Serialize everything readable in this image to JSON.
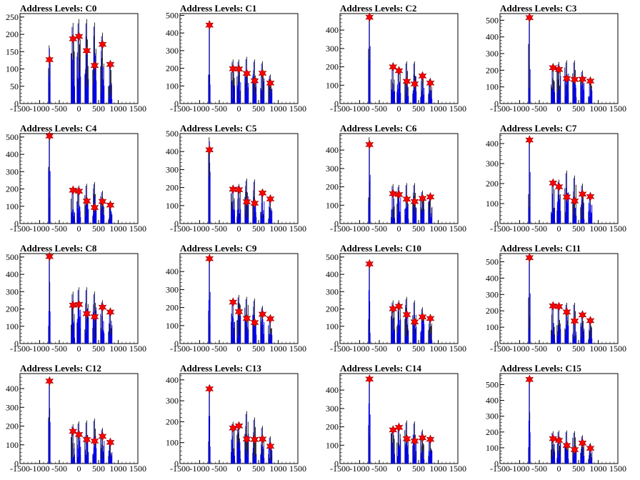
{
  "chart_data": [
    {
      "type": "bar",
      "title": "Address Levels: C0",
      "xlim": [
        -1500,
        1500
      ],
      "ylim": [
        0,
        260
      ],
      "yticks": [
        0,
        50,
        100,
        150,
        200,
        250
      ],
      "peaks": [
        {
          "x": -750,
          "y": 127,
          "top": 168
        },
        {
          "x": -150,
          "y": 187,
          "top": 233
        },
        {
          "x": 0,
          "y": 194,
          "top": 244
        },
        {
          "x": 200,
          "y": 153,
          "top": 244
        },
        {
          "x": 400,
          "y": 110,
          "top": 234
        },
        {
          "x": 600,
          "y": 171,
          "top": 205
        },
        {
          "x": 800,
          "y": 113,
          "top": 120
        }
      ]
    },
    {
      "type": "bar",
      "title": "Address Levels: C1",
      "xlim": [
        -1500,
        1500
      ],
      "ylim": [
        0,
        510
      ],
      "yticks": [
        0,
        100,
        200,
        300,
        400,
        500
      ],
      "peaks": [
        {
          "x": -750,
          "y": 445,
          "top": 470
        },
        {
          "x": -150,
          "y": 197,
          "top": 250
        },
        {
          "x": 0,
          "y": 196,
          "top": 250
        },
        {
          "x": 200,
          "y": 171,
          "top": 265
        },
        {
          "x": 400,
          "y": 129,
          "top": 250
        },
        {
          "x": 600,
          "y": 172,
          "top": 240
        },
        {
          "x": 800,
          "y": 116,
          "top": 165
        }
      ]
    },
    {
      "type": "bar",
      "title": "Address Levels: C2",
      "xlim": [
        -1500,
        1500
      ],
      "ylim": [
        0,
        490
      ],
      "yticks": [
        0,
        100,
        200,
        300,
        400
      ],
      "peaks": [
        {
          "x": -750,
          "y": 470,
          "top": 480
        },
        {
          "x": -150,
          "y": 200,
          "top": 210
        },
        {
          "x": 0,
          "y": 179,
          "top": 200
        },
        {
          "x": 200,
          "y": 121,
          "top": 230
        },
        {
          "x": 400,
          "y": 107,
          "top": 230
        },
        {
          "x": 600,
          "y": 150,
          "top": 160
        },
        {
          "x": 800,
          "y": 112,
          "top": 140
        }
      ]
    },
    {
      "type": "bar",
      "title": "Address Levels: C3",
      "xlim": [
        -1500,
        1500
      ],
      "ylim": [
        0,
        540
      ],
      "yticks": [
        0,
        100,
        200,
        300,
        400,
        500
      ],
      "peaks": [
        {
          "x": -750,
          "y": 516,
          "top": 520
        },
        {
          "x": -150,
          "y": 215,
          "top": 240
        },
        {
          "x": 0,
          "y": 205,
          "top": 250
        },
        {
          "x": 200,
          "y": 150,
          "top": 260
        },
        {
          "x": 400,
          "y": 145,
          "top": 260
        },
        {
          "x": 600,
          "y": 146,
          "top": 200
        },
        {
          "x": 800,
          "y": 135,
          "top": 150
        }
      ]
    },
    {
      "type": "bar",
      "title": "Address Levels: C4",
      "xlim": [
        -1500,
        1500
      ],
      "ylim": [
        0,
        520
      ],
      "yticks": [
        0,
        100,
        200,
        300,
        400,
        500
      ],
      "peaks": [
        {
          "x": -750,
          "y": 506,
          "top": 510
        },
        {
          "x": -150,
          "y": 193,
          "top": 210
        },
        {
          "x": 0,
          "y": 187,
          "top": 220
        },
        {
          "x": 200,
          "y": 130,
          "top": 230
        },
        {
          "x": 400,
          "y": 93,
          "top": 240
        },
        {
          "x": 600,
          "y": 128,
          "top": 190
        },
        {
          "x": 800,
          "y": 107,
          "top": 120
        }
      ]
    },
    {
      "type": "bar",
      "title": "Address Levels: C5",
      "xlim": [
        -1500,
        1500
      ],
      "ylim": [
        0,
        500
      ],
      "yticks": [
        0,
        100,
        200,
        300,
        400,
        500
      ],
      "peaks": [
        {
          "x": -750,
          "y": 410,
          "top": 480
        },
        {
          "x": -150,
          "y": 191,
          "top": 200
        },
        {
          "x": 0,
          "y": 188,
          "top": 220
        },
        {
          "x": 200,
          "y": 121,
          "top": 250
        },
        {
          "x": 400,
          "y": 113,
          "top": 245
        },
        {
          "x": 600,
          "y": 170,
          "top": 190
        },
        {
          "x": 800,
          "y": 137,
          "top": 145
        }
      ]
    },
    {
      "type": "bar",
      "title": "Address Levels: C6",
      "xlim": [
        -1500,
        1500
      ],
      "ylim": [
        0,
        490
      ],
      "yticks": [
        0,
        100,
        200,
        300,
        400
      ],
      "peaks": [
        {
          "x": -750,
          "y": 430,
          "top": 470
        },
        {
          "x": -150,
          "y": 163,
          "top": 215
        },
        {
          "x": 0,
          "y": 158,
          "top": 210
        },
        {
          "x": 200,
          "y": 133,
          "top": 220
        },
        {
          "x": 400,
          "y": 120,
          "top": 220
        },
        {
          "x": 600,
          "y": 137,
          "top": 180
        },
        {
          "x": 800,
          "y": 145,
          "top": 150
        }
      ]
    },
    {
      "type": "bar",
      "title": "Address Levels: C7",
      "xlim": [
        -1500,
        1500
      ],
      "ylim": [
        0,
        450
      ],
      "yticks": [
        0,
        100,
        200,
        300,
        400
      ],
      "peaks": [
        {
          "x": -750,
          "y": 418,
          "top": 430
        },
        {
          "x": -150,
          "y": 203,
          "top": 220
        },
        {
          "x": 0,
          "y": 184,
          "top": 220
        },
        {
          "x": 200,
          "y": 133,
          "top": 265
        },
        {
          "x": 400,
          "y": 113,
          "top": 240
        },
        {
          "x": 600,
          "y": 147,
          "top": 200
        },
        {
          "x": 800,
          "y": 135,
          "top": 150
        }
      ]
    },
    {
      "type": "bar",
      "title": "Address Levels: C8",
      "xlim": [
        -1500,
        1500
      ],
      "ylim": [
        0,
        520
      ],
      "yticks": [
        0,
        100,
        200,
        300,
        400,
        500
      ],
      "peaks": [
        {
          "x": -750,
          "y": 503,
          "top": 510
        },
        {
          "x": -150,
          "y": 222,
          "top": 300
        },
        {
          "x": 0,
          "y": 226,
          "top": 325
        },
        {
          "x": 200,
          "y": 173,
          "top": 325
        },
        {
          "x": 400,
          "y": 155,
          "top": 300
        },
        {
          "x": 600,
          "y": 210,
          "top": 250
        },
        {
          "x": 800,
          "y": 182,
          "top": 200
        }
      ]
    },
    {
      "type": "bar",
      "title": "Address Levels: C9",
      "xlim": [
        -1500,
        1500
      ],
      "ylim": [
        0,
        500
      ],
      "yticks": [
        0,
        100,
        200,
        300,
        400
      ],
      "peaks": [
        {
          "x": -750,
          "y": 472,
          "top": 480
        },
        {
          "x": -150,
          "y": 230,
          "top": 240
        },
        {
          "x": 0,
          "y": 177,
          "top": 270
        },
        {
          "x": 200,
          "y": 140,
          "top": 260
        },
        {
          "x": 400,
          "y": 117,
          "top": 250
        },
        {
          "x": 600,
          "y": 163,
          "top": 210
        },
        {
          "x": 800,
          "y": 138,
          "top": 150
        }
      ]
    },
    {
      "type": "bar",
      "title": "Address Levels: C10",
      "xlim": [
        -1500,
        1500
      ],
      "ylim": [
        0,
        520
      ],
      "yticks": [
        0,
        100,
        200,
        300,
        400,
        500
      ],
      "peaks": [
        {
          "x": -750,
          "y": 460,
          "top": 470
        },
        {
          "x": -150,
          "y": 201,
          "top": 250
        },
        {
          "x": 0,
          "y": 215,
          "top": 250
        },
        {
          "x": 200,
          "y": 167,
          "top": 270
        },
        {
          "x": 400,
          "y": 125,
          "top": 250
        },
        {
          "x": 600,
          "y": 154,
          "top": 210
        },
        {
          "x": 800,
          "y": 145,
          "top": 150
        }
      ]
    },
    {
      "type": "bar",
      "title": "Address Levels: C11",
      "xlim": [
        -1500,
        1500
      ],
      "ylim": [
        0,
        550
      ],
      "yticks": [
        0,
        100,
        200,
        300,
        400,
        500
      ],
      "peaks": [
        {
          "x": -750,
          "y": 525,
          "top": 530
        },
        {
          "x": -150,
          "y": 230,
          "top": 240
        },
        {
          "x": 0,
          "y": 226,
          "top": 230
        },
        {
          "x": 200,
          "y": 193,
          "top": 250
        },
        {
          "x": 400,
          "y": 138,
          "top": 250
        },
        {
          "x": 600,
          "y": 175,
          "top": 200
        },
        {
          "x": 800,
          "y": 140,
          "top": 150
        }
      ]
    },
    {
      "type": "bar",
      "title": "Address Levels: C12",
      "xlim": [
        -1500,
        1500
      ],
      "ylim": [
        0,
        480
      ],
      "yticks": [
        0,
        100,
        200,
        300,
        400
      ],
      "peaks": [
        {
          "x": -750,
          "y": 440,
          "top": 450
        },
        {
          "x": -150,
          "y": 172,
          "top": 210
        },
        {
          "x": 0,
          "y": 155,
          "top": 225
        },
        {
          "x": 200,
          "y": 128,
          "top": 230
        },
        {
          "x": 400,
          "y": 120,
          "top": 240
        },
        {
          "x": 600,
          "y": 145,
          "top": 190
        },
        {
          "x": 800,
          "y": 113,
          "top": 125
        }
      ]
    },
    {
      "type": "bar",
      "title": "Address Levels: C13",
      "xlim": [
        -1500,
        1500
      ],
      "ylim": [
        0,
        430
      ],
      "yticks": [
        0,
        100,
        200,
        300,
        400
      ],
      "peaks": [
        {
          "x": -750,
          "y": 357,
          "top": 370
        },
        {
          "x": -150,
          "y": 170,
          "top": 200
        },
        {
          "x": 0,
          "y": 180,
          "top": 200
        },
        {
          "x": 200,
          "y": 117,
          "top": 250
        },
        {
          "x": 400,
          "y": 115,
          "top": 220
        },
        {
          "x": 600,
          "y": 117,
          "top": 180
        },
        {
          "x": 800,
          "y": 83,
          "top": 130
        }
      ]
    },
    {
      "type": "bar",
      "title": "Address Levels: C14",
      "xlim": [
        -1500,
        1500
      ],
      "ylim": [
        0,
        490
      ],
      "yticks": [
        0,
        100,
        200,
        300,
        400
      ],
      "peaks": [
        {
          "x": -750,
          "y": 460,
          "top": 470
        },
        {
          "x": -150,
          "y": 183,
          "top": 200
        },
        {
          "x": 0,
          "y": 197,
          "top": 200
        },
        {
          "x": 200,
          "y": 135,
          "top": 235
        },
        {
          "x": 400,
          "y": 123,
          "top": 230
        },
        {
          "x": 600,
          "y": 140,
          "top": 185
        },
        {
          "x": 800,
          "y": 132,
          "top": 140
        }
      ]
    },
    {
      "type": "bar",
      "title": "Address Levels: C15",
      "xlim": [
        -1500,
        1500
      ],
      "ylim": [
        0,
        570
      ],
      "yticks": [
        0,
        100,
        200,
        300,
        400,
        500
      ],
      "peaks": [
        {
          "x": -750,
          "y": 533,
          "top": 540
        },
        {
          "x": -150,
          "y": 158,
          "top": 205
        },
        {
          "x": 0,
          "y": 147,
          "top": 210
        },
        {
          "x": 200,
          "y": 115,
          "top": 210
        },
        {
          "x": 400,
          "y": 88,
          "top": 205
        },
        {
          "x": 600,
          "y": 130,
          "top": 180
        },
        {
          "x": 800,
          "y": 97,
          "top": 130
        }
      ]
    }
  ],
  "xticks": [
    -1500,
    -1000,
    -500,
    0,
    500,
    1000,
    1500
  ],
  "colors": {
    "frame": "#000000",
    "hist_dark": "#000000",
    "hist_blue": "#0000ff",
    "marker": "#ff0000",
    "marker_edge": "#880000"
  }
}
